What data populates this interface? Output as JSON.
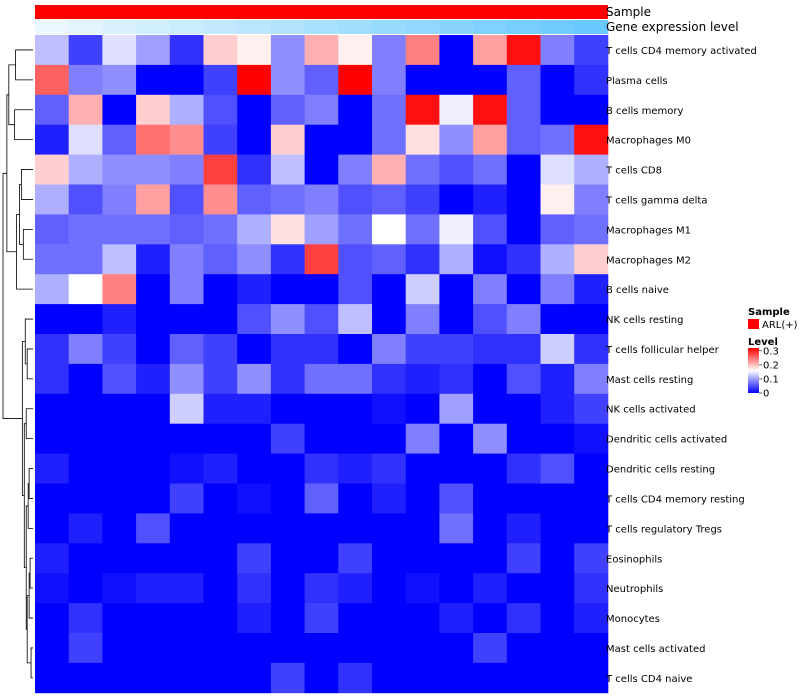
{
  "chart_data": {
    "type": "heatmap",
    "title": "",
    "annotation_tracks": [
      "Sample",
      "Gene expression level"
    ],
    "rows": [
      "T cells CD4 memory activated",
      "Plasma cells",
      "B cells memory",
      "Macrophages M0",
      "T cells CD8",
      "T cells gamma delta",
      "Macrophages M1",
      "Macrophages M2",
      "B cells naive",
      "NK cells resting",
      "T cells follicular helper",
      "Mast cells resting",
      "NK cells activated",
      "Dendritic cells activated",
      "Dendritic cells resting",
      "T cells CD4 memory resting",
      "T cells regulatory  Tregs",
      "Eosinophils",
      "Neutrophils",
      "Monocytes",
      "Mast cells activated",
      "T cells CD4 naive"
    ],
    "n_columns": 17,
    "values": [
      [
        0.12,
        0.04,
        0.14,
        0.1,
        0.03,
        0.19,
        0.17,
        0.09,
        0.21,
        0.17,
        0.08,
        0.24,
        0.0,
        0.22,
        0.31,
        0.08,
        0.04
      ],
      [
        0.26,
        0.08,
        0.09,
        0.0,
        0.0,
        0.04,
        0.32,
        0.09,
        0.06,
        0.32,
        0.08,
        0.0,
        0.0,
        0.0,
        0.06,
        0.0,
        0.03
      ],
      [
        0.06,
        0.21,
        0.0,
        0.19,
        0.11,
        0.05,
        0.0,
        0.06,
        0.08,
        0.0,
        0.07,
        0.31,
        0.15,
        0.31,
        0.06,
        0.0,
        0.0
      ],
      [
        0.02,
        0.14,
        0.06,
        0.25,
        0.23,
        0.04,
        0.0,
        0.19,
        0.0,
        0.0,
        0.07,
        0.18,
        0.09,
        0.22,
        0.06,
        0.07,
        0.31
      ],
      [
        0.19,
        0.11,
        0.09,
        0.09,
        0.08,
        0.28,
        0.03,
        0.12,
        0.0,
        0.08,
        0.21,
        0.07,
        0.05,
        0.07,
        0.0,
        0.14,
        0.11
      ],
      [
        0.11,
        0.05,
        0.08,
        0.22,
        0.05,
        0.23,
        0.06,
        0.07,
        0.08,
        0.05,
        0.06,
        0.04,
        0.0,
        0.02,
        0.0,
        0.17,
        0.08
      ],
      [
        0.06,
        0.07,
        0.07,
        0.07,
        0.06,
        0.07,
        0.11,
        0.18,
        0.1,
        0.07,
        0.16,
        0.07,
        0.15,
        0.05,
        0.0,
        0.06,
        0.07
      ],
      [
        0.07,
        0.07,
        0.12,
        0.02,
        0.08,
        0.06,
        0.09,
        0.03,
        0.28,
        0.05,
        0.06,
        0.03,
        0.11,
        0.01,
        0.03,
        0.11,
        0.19
      ],
      [
        0.11,
        0.16,
        0.24,
        0.0,
        0.08,
        0.0,
        0.02,
        0.0,
        0.0,
        0.05,
        0.0,
        0.13,
        0.0,
        0.08,
        0.0,
        0.08,
        0.02
      ],
      [
        0.0,
        0.0,
        0.02,
        0.0,
        0.0,
        0.0,
        0.05,
        0.09,
        0.05,
        0.12,
        0.0,
        0.08,
        0.0,
        0.05,
        0.08,
        0.0,
        0.0
      ],
      [
        0.03,
        0.08,
        0.04,
        0.0,
        0.06,
        0.04,
        0.0,
        0.03,
        0.03,
        0.0,
        0.08,
        0.04,
        0.04,
        0.03,
        0.03,
        0.13,
        0.03
      ],
      [
        0.03,
        0.0,
        0.05,
        0.02,
        0.09,
        0.04,
        0.09,
        0.03,
        0.07,
        0.07,
        0.03,
        0.02,
        0.03,
        0.0,
        0.05,
        0.02,
        0.08
      ],
      [
        0.0,
        0.0,
        0.0,
        0.0,
        0.13,
        0.02,
        0.02,
        0.0,
        0.0,
        0.0,
        0.01,
        0.0,
        0.1,
        0.0,
        0.0,
        0.02,
        0.04
      ],
      [
        0.0,
        0.0,
        0.0,
        0.0,
        0.0,
        0.0,
        0.0,
        0.04,
        0.0,
        0.0,
        0.0,
        0.08,
        0.0,
        0.09,
        0.0,
        0.0,
        0.01
      ],
      [
        0.02,
        0.0,
        0.0,
        0.0,
        0.01,
        0.02,
        0.0,
        0.0,
        0.03,
        0.02,
        0.03,
        0.0,
        0.0,
        0.0,
        0.03,
        0.05,
        0.0
      ],
      [
        0.0,
        0.0,
        0.0,
        0.0,
        0.04,
        0.0,
        0.01,
        0.0,
        0.06,
        0.0,
        0.02,
        0.0,
        0.05,
        0.0,
        0.0,
        0.0,
        0.0
      ],
      [
        0.0,
        0.02,
        0.0,
        0.05,
        0.0,
        0.0,
        0.0,
        0.0,
        0.0,
        0.0,
        0.0,
        0.0,
        0.07,
        0.0,
        0.02,
        0.0,
        0.0
      ],
      [
        0.02,
        0.0,
        0.0,
        0.0,
        0.0,
        0.0,
        0.04,
        0.0,
        0.0,
        0.04,
        0.0,
        0.0,
        0.0,
        0.0,
        0.04,
        0.0,
        0.04
      ],
      [
        0.01,
        0.0,
        0.01,
        0.02,
        0.02,
        0.0,
        0.03,
        0.0,
        0.03,
        0.02,
        0.0,
        0.01,
        0.0,
        0.02,
        0.0,
        0.0,
        0.03
      ],
      [
        0.0,
        0.03,
        0.0,
        0.0,
        0.0,
        0.0,
        0.02,
        0.0,
        0.04,
        0.0,
        0.0,
        0.0,
        0.02,
        0.0,
        0.03,
        0.0,
        0.02
      ],
      [
        0.0,
        0.04,
        0.0,
        0.0,
        0.0,
        0.0,
        0.0,
        0.0,
        0.0,
        0.0,
        0.0,
        0.0,
        0.0,
        0.04,
        0.0,
        0.0,
        0.0
      ],
      [
        0.0,
        0.0,
        0.0,
        0.0,
        0.0,
        0.0,
        0.0,
        0.04,
        0.0,
        0.03,
        0.0,
        0.0,
        0.0,
        0.0,
        0.0,
        0.0,
        0.0
      ]
    ],
    "color_scale": {
      "min": 0,
      "mid": 0.16,
      "max": 0.32,
      "low_color": "#0000ff",
      "mid_color": "#ffffff",
      "high_color": "#ff0000"
    },
    "sample_annotation": {
      "group": "ARL(+)",
      "color": "#ff0000"
    },
    "gene_expression_annotation": [
      0.1,
      0.14,
      0.18,
      0.22,
      0.26,
      0.3,
      0.34,
      0.38,
      0.42,
      0.46,
      0.5,
      0.54,
      0.58,
      0.62,
      0.66,
      0.7,
      0.74
    ],
    "legend": {
      "sample_title": "Sample",
      "sample_label": "ARL(+)",
      "level_title": "Level",
      "level_ticks": [
        "0.3",
        "0.2",
        "0.1",
        "0"
      ],
      "level_tick_values": [
        0.3,
        0.2,
        0.1,
        0
      ],
      "level_range": [
        0,
        0.32
      ],
      "position": "right"
    }
  }
}
